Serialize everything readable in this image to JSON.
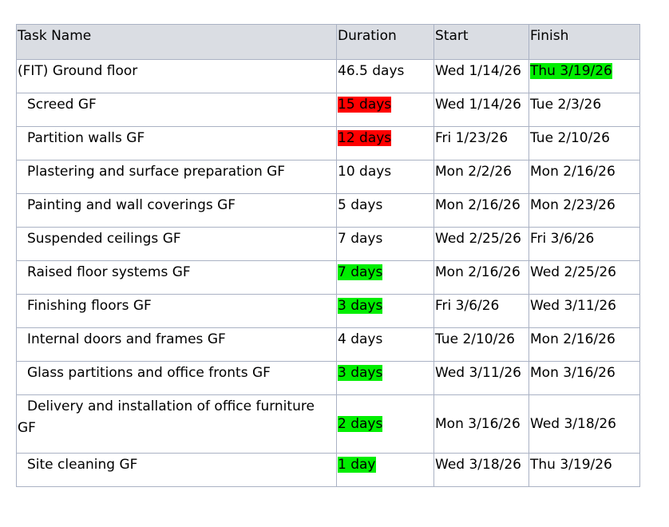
{
  "columns": {
    "task_name": "Task Name",
    "duration": "Duration",
    "start": "Start",
    "finish": "Finish"
  },
  "colors": {
    "header_bg": "#dadde3",
    "border": "#aab2c4",
    "highlight_red": "#ff0000",
    "highlight_green": "#00ee00"
  },
  "summary": {
    "task_name": "(FIT) Ground floor",
    "duration": "46.5 days",
    "start": "Wed 1/14/26",
    "finish": "Thu 3/19/26"
  },
  "tasks": [
    {
      "task_name": "Screed GF",
      "duration": "15 days",
      "start": "Wed 1/14/26",
      "finish": "Tue 2/3/26"
    },
    {
      "task_name": "Partition walls GF",
      "duration": "12 days",
      "start": "Fri 1/23/26",
      "finish": "Tue 2/10/26"
    },
    {
      "task_name": "Plastering and surface preparation GF",
      "duration": "10 days",
      "start": "Mon 2/2/26",
      "finish": "Mon 2/16/26"
    },
    {
      "task_name": "Painting and wall coverings GF",
      "duration": "5 days",
      "start": "Mon 2/16/26",
      "finish": "Mon 2/23/26"
    },
    {
      "task_name": "Suspended ceilings GF",
      "duration": "7 days",
      "start": "Wed 2/25/26",
      "finish": "Fri 3/6/26"
    },
    {
      "task_name": "Raised floor systems GF",
      "duration": "7 days",
      "start": "Mon 2/16/26",
      "finish": "Wed 2/25/26"
    },
    {
      "task_name": "Finishing floors GF",
      "duration": "3 days",
      "start": "Fri 3/6/26",
      "finish": "Wed 3/11/26"
    },
    {
      "task_name": "Internal doors and frames GF",
      "duration": "4 days",
      "start": "Tue 2/10/26",
      "finish": "Mon 2/16/26"
    },
    {
      "task_name": "Glass partitions and office fronts GF",
      "duration": "3 days",
      "start": "Wed 3/11/26",
      "finish": "Mon 3/16/26"
    },
    {
      "task_name": "Delivery and installation of office furniture GF",
      "duration": "2 days",
      "start": "Mon 3/16/26",
      "finish": "Wed 3/18/26"
    },
    {
      "task_name": "Site cleaning GF",
      "duration": "1 day",
      "start": "Wed 3/18/26",
      "finish": "Thu 3/19/26"
    }
  ]
}
